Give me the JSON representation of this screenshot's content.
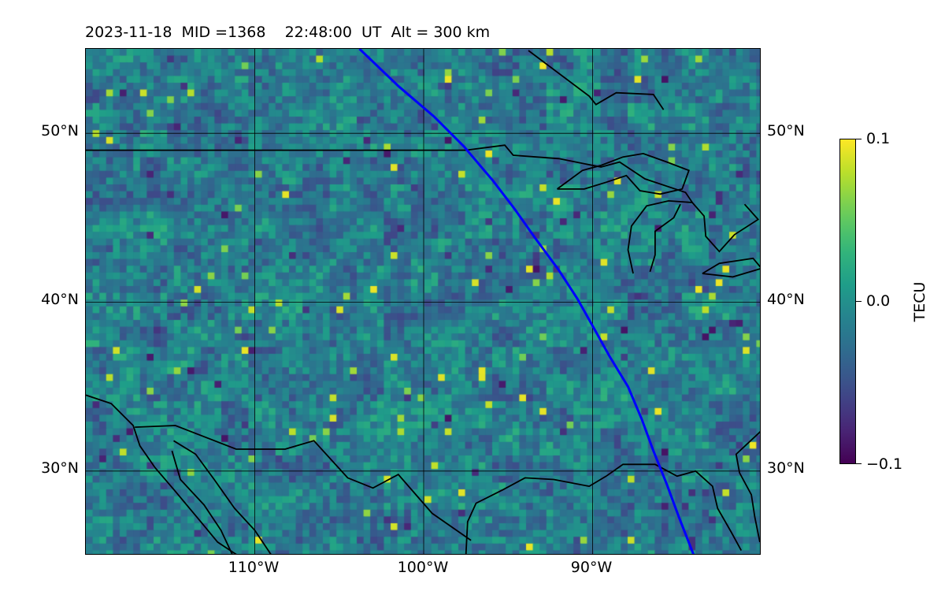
{
  "title": "2023-11-18  MID =1368    22:48:00  UT  Alt = 300 km",
  "map": {
    "lon_range": [
      -120,
      -80
    ],
    "lat_range": [
      25,
      55
    ],
    "gridlines": true,
    "lat_ticks": [
      {
        "value": 30,
        "label": "30°N"
      },
      {
        "value": 40,
        "label": "40°N"
      },
      {
        "value": 50,
        "label": "50°N"
      }
    ],
    "lon_ticks": [
      {
        "value": -110,
        "label": "110°W"
      },
      {
        "value": -100,
        "label": "100°W"
      },
      {
        "value": -90,
        "label": "90°W"
      }
    ],
    "field": "TEC perturbation (gridded, noisy; roughly -0.1 to 0.1 TECU)",
    "track_color": "#0000ff",
    "track": [
      [
        -103.8,
        55
      ],
      [
        -101.5,
        52.8
      ],
      [
        -99.4,
        51
      ],
      [
        -97.6,
        49.2
      ],
      [
        -95.9,
        47.2
      ],
      [
        -94.6,
        45.5
      ],
      [
        -93.4,
        43.8
      ],
      [
        -92.0,
        41.9
      ],
      [
        -90.9,
        40.2
      ],
      [
        -90.0,
        38.6
      ],
      [
        -89.0,
        36.8
      ],
      [
        -87.9,
        35.0
      ],
      [
        -87.1,
        33.1
      ],
      [
        -86.4,
        31.2
      ],
      [
        -85.6,
        29.2
      ],
      [
        -84.9,
        27.3
      ],
      [
        -84.0,
        25
      ]
    ],
    "coast_color": "#000000"
  },
  "colorbar": {
    "label": "TECU",
    "colormap": "viridis",
    "vmin": -0.1,
    "vmax": 0.1,
    "ticks": [
      {
        "value": 0.1,
        "label": "0.1"
      },
      {
        "value": 0.0,
        "label": "0.0"
      },
      {
        "value": -0.1,
        "label": "−0.1"
      }
    ]
  }
}
